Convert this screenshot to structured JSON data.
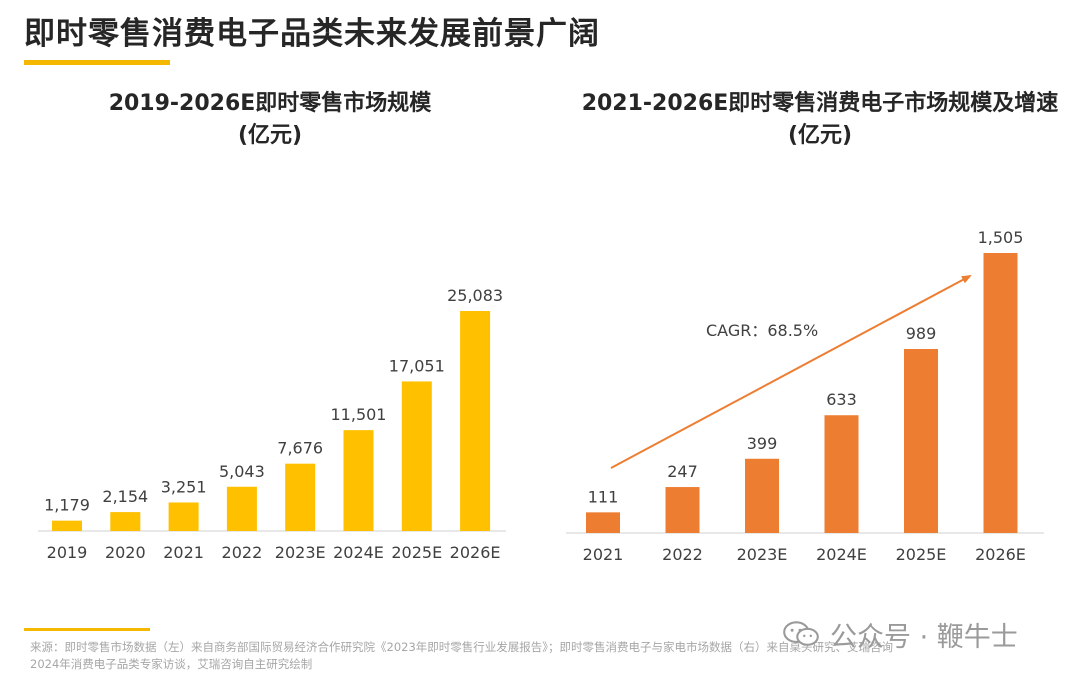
{
  "header": {
    "title": "即时零售消费电子品类未来发展前景广阔"
  },
  "chart_data": [
    {
      "type": "bar",
      "title": "2019-2026E即时零售市场规模",
      "subtitle": "(亿元)",
      "categories": [
        "2019",
        "2020",
        "2021",
        "2022",
        "2023E",
        "2024E",
        "2025E",
        "2026E"
      ],
      "values": [
        1179,
        2154,
        3251,
        5043,
        7676,
        11501,
        17051,
        25083
      ],
      "value_labels": [
        "1,179",
        "2,154",
        "3,251",
        "5,043",
        "7,676",
        "11,501",
        "17,051",
        "25,083"
      ],
      "color": "#FFC000",
      "ylim": [
        0,
        25083
      ],
      "grid": false
    },
    {
      "type": "bar",
      "title": "2021-2026E即时零售消费电子市场规模及增速",
      "subtitle": "(亿元)",
      "categories": [
        "2021",
        "2022",
        "2023E",
        "2024E",
        "2025E",
        "2026E"
      ],
      "values": [
        111,
        247,
        399,
        633,
        989,
        1505
      ],
      "value_labels": [
        "111",
        "247",
        "399",
        "633",
        "989",
        "1,505"
      ],
      "color": "#ED7D31",
      "ylim": [
        0,
        1505
      ],
      "grid": false,
      "annotation": "CAGR：68.5%"
    }
  ],
  "footer": {
    "source_line1": "来源：即时零售市场数据（左）来自商务部国际贸易经济合作研究院《2023年即时零售行业发展报告》；即时零售消费电子与家电市场数据（右）来自桌头研究、艾瑞咨询",
    "source_line2": "2024年消费电子品类专家访谈，艾瑞咨询自主研究绘制",
    "watermark": "公众号 · 鞭牛士"
  },
  "colors": {
    "accent_yellow": "#F5B800",
    "bar_yellow": "#FFC000",
    "bar_orange": "#ED7D31",
    "arrow": "#ED7D31"
  }
}
